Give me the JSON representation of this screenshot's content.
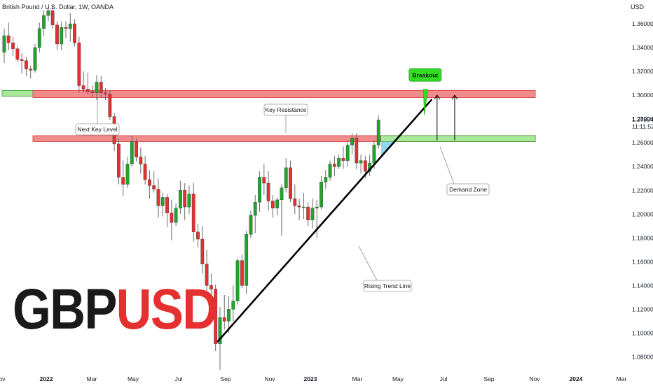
{
  "header": {
    "symbol": "British Pound / U.S. Dollar, 1W, OANDA",
    "currency": "USD"
  },
  "brand": {
    "base": "GBP",
    "quote": "USD"
  },
  "last_price": {
    "value": "1.27894",
    "countdown": "11:11:52"
  },
  "colors": {
    "up": "#22a32e",
    "down": "#e53030",
    "resistance_fill": "#f28b8b",
    "support_fill": "#a8e89a",
    "demand_fill": "#7fd1ee",
    "label_green": "#33dd22",
    "trend_line": "#000000"
  },
  "chart_data": {
    "type": "candlestick",
    "title": "British Pound / U.S. Dollar, 1W, OANDA",
    "ylim": [
      1.065,
      1.38
    ],
    "y_ticks": [
      "1.36000",
      "1.34000",
      "1.32000",
      "1.30000",
      "1.28000",
      "1.26000",
      "1.24000",
      "1.22000",
      "1.20000",
      "1.18000",
      "1.16000",
      "1.14000",
      "1.12000",
      "1.10000",
      "1.08000"
    ],
    "x_ticks": [
      "Nov",
      "2022",
      "Mar",
      "May",
      "Jul",
      "Sep",
      "Nov",
      "2023",
      "Mar",
      "May",
      "Jul",
      "Sep",
      "Nov",
      "2024",
      "Mar"
    ],
    "candles": [
      {
        "o": 1.336,
        "h": 1.356,
        "l": 1.327,
        "c": 1.35
      },
      {
        "o": 1.35,
        "h": 1.361,
        "l": 1.338,
        "c": 1.344
      },
      {
        "o": 1.344,
        "h": 1.349,
        "l": 1.333,
        "c": 1.339
      },
      {
        "o": 1.339,
        "h": 1.341,
        "l": 1.328,
        "c": 1.33
      },
      {
        "o": 1.33,
        "h": 1.335,
        "l": 1.318,
        "c": 1.329
      },
      {
        "o": 1.329,
        "h": 1.332,
        "l": 1.316,
        "c": 1.322
      },
      {
        "o": 1.322,
        "h": 1.325,
        "l": 1.314,
        "c": 1.321
      },
      {
        "o": 1.321,
        "h": 1.343,
        "l": 1.319,
        "c": 1.34
      },
      {
        "o": 1.34,
        "h": 1.361,
        "l": 1.336,
        "c": 1.356
      },
      {
        "o": 1.356,
        "h": 1.371,
        "l": 1.35,
        "c": 1.367
      },
      {
        "o": 1.367,
        "h": 1.374,
        "l": 1.362,
        "c": 1.371
      },
      {
        "o": 1.371,
        "h": 1.375,
        "l": 1.356,
        "c": 1.359
      },
      {
        "o": 1.359,
        "h": 1.362,
        "l": 1.338,
        "c": 1.343
      },
      {
        "o": 1.343,
        "h": 1.362,
        "l": 1.338,
        "c": 1.357
      },
      {
        "o": 1.357,
        "h": 1.362,
        "l": 1.348,
        "c": 1.356
      },
      {
        "o": 1.356,
        "h": 1.369,
        "l": 1.345,
        "c": 1.36
      },
      {
        "o": 1.36,
        "h": 1.364,
        "l": 1.341,
        "c": 1.344
      },
      {
        "o": 1.344,
        "h": 1.349,
        "l": 1.302,
        "c": 1.308
      },
      {
        "o": 1.308,
        "h": 1.32,
        "l": 1.302,
        "c": 1.305
      },
      {
        "o": 1.305,
        "h": 1.319,
        "l": 1.301,
        "c": 1.303
      },
      {
        "o": 1.303,
        "h": 1.308,
        "l": 1.298,
        "c": 1.302
      },
      {
        "o": 1.302,
        "h": 1.317,
        "l": 1.296,
        "c": 1.311
      },
      {
        "o": 1.311,
        "h": 1.316,
        "l": 1.298,
        "c": 1.302
      },
      {
        "o": 1.302,
        "h": 1.306,
        "l": 1.296,
        "c": 1.301
      },
      {
        "o": 1.301,
        "h": 1.304,
        "l": 1.279,
        "c": 1.282
      },
      {
        "o": 1.282,
        "h": 1.285,
        "l": 1.253,
        "c": 1.259
      },
      {
        "o": 1.259,
        "h": 1.264,
        "l": 1.225,
        "c": 1.231
      },
      {
        "o": 1.231,
        "h": 1.245,
        "l": 1.215,
        "c": 1.225
      },
      {
        "o": 1.225,
        "h": 1.248,
        "l": 1.222,
        "c": 1.242
      },
      {
        "o": 1.242,
        "h": 1.266,
        "l": 1.24,
        "c": 1.261
      },
      {
        "o": 1.261,
        "h": 1.264,
        "l": 1.244,
        "c": 1.248
      },
      {
        "o": 1.248,
        "h": 1.256,
        "l": 1.234,
        "c": 1.242
      },
      {
        "o": 1.242,
        "h": 1.249,
        "l": 1.225,
        "c": 1.229
      },
      {
        "o": 1.229,
        "h": 1.237,
        "l": 1.213,
        "c": 1.224
      },
      {
        "o": 1.224,
        "h": 1.236,
        "l": 1.218,
        "c": 1.221
      },
      {
        "o": 1.221,
        "h": 1.23,
        "l": 1.197,
        "c": 1.207
      },
      {
        "o": 1.207,
        "h": 1.218,
        "l": 1.198,
        "c": 1.214
      },
      {
        "o": 1.214,
        "h": 1.217,
        "l": 1.189,
        "c": 1.201
      },
      {
        "o": 1.201,
        "h": 1.212,
        "l": 1.178,
        "c": 1.193
      },
      {
        "o": 1.193,
        "h": 1.209,
        "l": 1.19,
        "c": 1.205
      },
      {
        "o": 1.205,
        "h": 1.228,
        "l": 1.2,
        "c": 1.22
      },
      {
        "o": 1.22,
        "h": 1.226,
        "l": 1.195,
        "c": 1.206
      },
      {
        "o": 1.206,
        "h": 1.224,
        "l": 1.2,
        "c": 1.217
      },
      {
        "o": 1.217,
        "h": 1.226,
        "l": 1.177,
        "c": 1.185
      },
      {
        "o": 1.185,
        "h": 1.192,
        "l": 1.172,
        "c": 1.179
      },
      {
        "o": 1.179,
        "h": 1.19,
        "l": 1.15,
        "c": 1.158
      },
      {
        "o": 1.158,
        "h": 1.17,
        "l": 1.135,
        "c": 1.14
      },
      {
        "o": 1.14,
        "h": 1.15,
        "l": 1.125,
        "c": 1.137
      },
      {
        "o": 1.137,
        "h": 1.141,
        "l": 1.085,
        "c": 1.091
      },
      {
        "o": 1.091,
        "h": 1.122,
        "l": 1.069,
        "c": 1.113
      },
      {
        "o": 1.113,
        "h": 1.132,
        "l": 1.103,
        "c": 1.11
      },
      {
        "o": 1.11,
        "h": 1.131,
        "l": 1.1,
        "c": 1.12
      },
      {
        "o": 1.12,
        "h": 1.14,
        "l": 1.11,
        "c": 1.127
      },
      {
        "o": 1.127,
        "h": 1.163,
        "l": 1.124,
        "c": 1.161
      },
      {
        "o": 1.161,
        "h": 1.166,
        "l": 1.138,
        "c": 1.14
      },
      {
        "o": 1.14,
        "h": 1.186,
        "l": 1.133,
        "c": 1.183
      },
      {
        "o": 1.183,
        "h": 1.203,
        "l": 1.18,
        "c": 1.199
      },
      {
        "o": 1.199,
        "h": 1.216,
        "l": 1.184,
        "c": 1.21
      },
      {
        "o": 1.21,
        "h": 1.236,
        "l": 1.202,
        "c": 1.231
      },
      {
        "o": 1.231,
        "h": 1.242,
        "l": 1.216,
        "c": 1.226
      },
      {
        "o": 1.226,
        "h": 1.236,
        "l": 1.203,
        "c": 1.211
      },
      {
        "o": 1.211,
        "h": 1.216,
        "l": 1.197,
        "c": 1.205
      },
      {
        "o": 1.205,
        "h": 1.214,
        "l": 1.199,
        "c": 1.212
      },
      {
        "o": 1.212,
        "h": 1.225,
        "l": 1.182,
        "c": 1.222
      },
      {
        "o": 1.222,
        "h": 1.247,
        "l": 1.218,
        "c": 1.239
      },
      {
        "o": 1.239,
        "h": 1.245,
        "l": 1.21,
        "c": 1.213
      },
      {
        "o": 1.213,
        "h": 1.225,
        "l": 1.2,
        "c": 1.207
      },
      {
        "o": 1.207,
        "h": 1.213,
        "l": 1.195,
        "c": 1.206
      },
      {
        "o": 1.206,
        "h": 1.218,
        "l": 1.196,
        "c": 1.206
      },
      {
        "o": 1.206,
        "h": 1.21,
        "l": 1.19,
        "c": 1.195
      },
      {
        "o": 1.195,
        "h": 1.213,
        "l": 1.188,
        "c": 1.205
      },
      {
        "o": 1.205,
        "h": 1.212,
        "l": 1.18,
        "c": 1.206
      },
      {
        "o": 1.206,
        "h": 1.232,
        "l": 1.204,
        "c": 1.227
      },
      {
        "o": 1.227,
        "h": 1.237,
        "l": 1.221,
        "c": 1.231
      },
      {
        "o": 1.231,
        "h": 1.245,
        "l": 1.228,
        "c": 1.242
      },
      {
        "o": 1.242,
        "h": 1.249,
        "l": 1.232,
        "c": 1.24
      },
      {
        "o": 1.24,
        "h": 1.25,
        "l": 1.238,
        "c": 1.247
      },
      {
        "o": 1.247,
        "h": 1.257,
        "l": 1.238,
        "c": 1.245
      },
      {
        "o": 1.245,
        "h": 1.262,
        "l": 1.24,
        "c": 1.258
      },
      {
        "o": 1.258,
        "h": 1.268,
        "l": 1.25,
        "c": 1.264
      },
      {
        "o": 1.264,
        "h": 1.268,
        "l": 1.238,
        "c": 1.243
      },
      {
        "o": 1.243,
        "h": 1.25,
        "l": 1.234,
        "c": 1.245
      },
      {
        "o": 1.245,
        "h": 1.249,
        "l": 1.23,
        "c": 1.236
      },
      {
        "o": 1.236,
        "h": 1.25,
        "l": 1.232,
        "c": 1.243
      },
      {
        "o": 1.243,
        "h": 1.262,
        "l": 1.238,
        "c": 1.258
      },
      {
        "o": 1.258,
        "h": 1.283,
        "l": 1.255,
        "c": 1.279
      }
    ],
    "zones": [
      {
        "name": "next-key-level",
        "y1": 1.299,
        "y2": 1.304,
        "from": 0,
        "to": 7,
        "color": "support"
      },
      {
        "name": "upper-resistance",
        "y1": 1.298,
        "y2": 1.304,
        "from": 7,
        "to": "end",
        "color": "resistance"
      },
      {
        "name": "key-resistance",
        "y1": 1.261,
        "y2": 1.266,
        "from": 7,
        "to": "end",
        "color": "resistance"
      },
      {
        "name": "demand-overlap",
        "y1": 1.261,
        "y2": 1.266,
        "from": 86,
        "to": "end",
        "color": "support"
      }
    ],
    "trend_line": {
      "x1": 48.5,
      "y1": 1.093,
      "x2": 97,
      "y2": 1.296
    },
    "annotations": [
      {
        "name": "breakout",
        "text": "Breakout"
      },
      {
        "name": "key-resistance",
        "text": "Key Resistance"
      },
      {
        "name": "next-key-level",
        "text": "Next Key Level"
      },
      {
        "name": "demand-zone",
        "text": "Demand Zone"
      },
      {
        "name": "rising-trend-line",
        "text": "Rising Trend Line"
      }
    ]
  }
}
